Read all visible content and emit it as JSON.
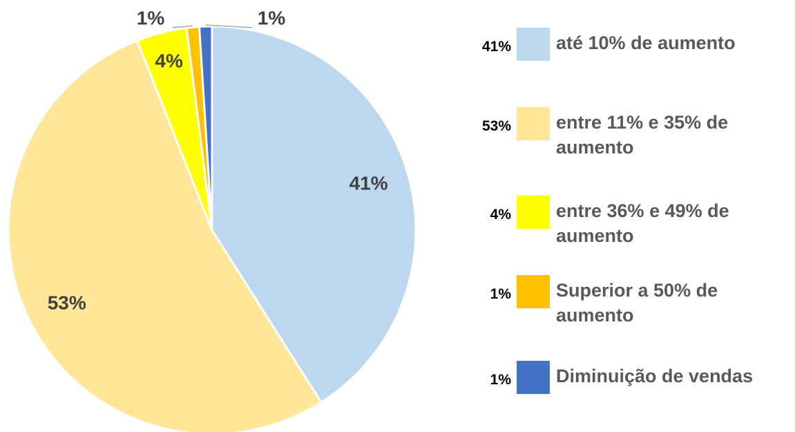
{
  "chart_data": {
    "type": "pie",
    "categories": [
      "até 10% de aumento",
      "entre 11% e 35% de aumento",
      "entre 36% e 49% de aumento",
      "Superior a 50% de aumento",
      "Diminuição de vendas"
    ],
    "values": [
      41,
      53,
      4,
      1,
      1
    ],
    "value_labels": [
      "41%",
      "53%",
      "4%",
      "1%",
      "1%"
    ],
    "colors": [
      "#BDD7EE",
      "#FFE699",
      "#FFFF00",
      "#FFC000",
      "#4472C4"
    ],
    "legend": "right"
  }
}
